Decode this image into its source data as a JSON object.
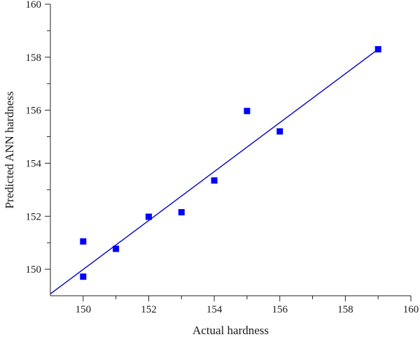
{
  "chart_data": {
    "type": "scatter",
    "xlabel": "Actual hardness",
    "ylabel": "Predicted ANN hardness",
    "xlim": [
      149,
      160
    ],
    "ylim": [
      149,
      160
    ],
    "x_ticks": [
      150,
      152,
      154,
      156,
      158,
      160
    ],
    "y_ticks": [
      150,
      152,
      154,
      156,
      158,
      160
    ],
    "grid": false,
    "series": [
      {
        "color": "#0000ff",
        "marker": "square",
        "points": [
          {
            "x": 150,
            "y": 151.05
          },
          {
            "x": 150,
            "y": 149.72
          },
          {
            "x": 151,
            "y": 150.77
          },
          {
            "x": 152,
            "y": 151.98
          },
          {
            "x": 153,
            "y": 152.15
          },
          {
            "x": 154,
            "y": 153.35
          },
          {
            "x": 155,
            "y": 155.97
          },
          {
            "x": 156,
            "y": 155.2
          },
          {
            "x": 159,
            "y": 158.3
          }
        ]
      }
    ],
    "fit_line": {
      "color": "#0000cc",
      "x": [
        149,
        159
      ],
      "y": [
        149.07,
        158.3
      ]
    }
  }
}
